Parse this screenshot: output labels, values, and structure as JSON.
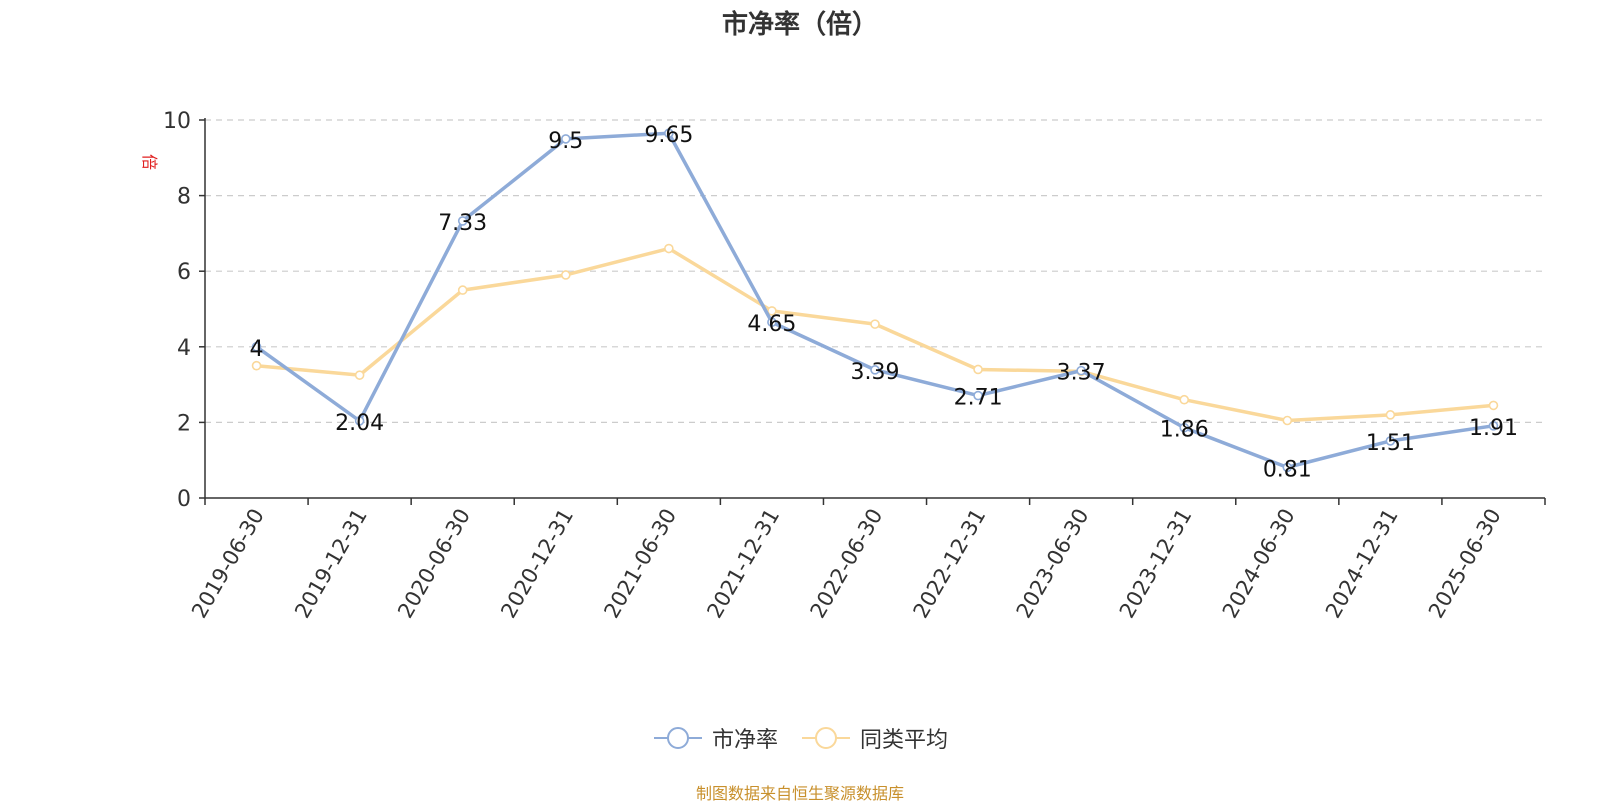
{
  "chart_data": {
    "type": "line",
    "title": "市净率（倍）",
    "ylabel": "倍",
    "xlabel": "",
    "ylim": [
      0,
      10
    ],
    "yticks": [
      0,
      2,
      4,
      6,
      8,
      10
    ],
    "grid": true,
    "legend_position": "bottom-center",
    "categories": [
      "2019-06-30",
      "2019-12-31",
      "2020-06-30",
      "2020-12-31",
      "2021-06-30",
      "2021-12-31",
      "2022-06-30",
      "2022-12-31",
      "2023-06-30",
      "2023-12-31",
      "2024-06-30",
      "2024-12-31",
      "2025-06-30"
    ],
    "series": [
      {
        "name": "市净率",
        "color": "#8eabd8",
        "values": [
          4,
          2.04,
          7.33,
          9.5,
          9.65,
          4.65,
          3.39,
          2.71,
          3.37,
          1.86,
          0.81,
          1.51,
          1.91
        ],
        "labels": [
          "4",
          "2.04",
          "7.33",
          "9.5",
          "9.65",
          "4.65",
          "3.39",
          "2.71",
          "3.37",
          "1.86",
          "0.81",
          "1.51",
          "1.91"
        ]
      },
      {
        "name": "同类平均",
        "color": "#fad89a",
        "values": [
          3.5,
          3.25,
          5.5,
          5.9,
          6.6,
          4.95,
          4.6,
          3.4,
          3.35,
          2.6,
          2.05,
          2.2,
          2.45
        ]
      }
    ]
  },
  "source_note": "制图数据来自恒生聚源数据库"
}
